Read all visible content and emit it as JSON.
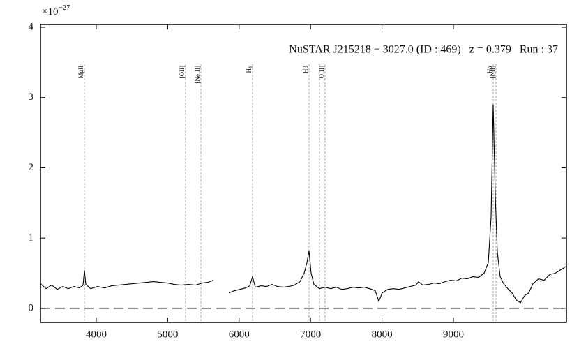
{
  "chart_data": {
    "type": "line",
    "annotation": "NuSTAR J215218 − 3027.0 (ID : 469)   z = 0.379   Run : 37",
    "y_multiplier": {
      "base": "×10",
      "exponent": "−27"
    },
    "xlim": [
      3219,
      10582
    ],
    "xticks": [
      4000,
      5000,
      6000,
      7000,
      8000,
      9000
    ],
    "ylim": [
      -0.2,
      4.04
    ],
    "yticks": [
      0,
      1,
      2,
      3,
      4
    ],
    "zero_line": {
      "value": 0,
      "color": "#808080"
    },
    "emission_lines": {
      "color": "#aaaaaa",
      "labels": [
        "MgII",
        "[OII]",
        "[NeIII]",
        "Hγ",
        "Hβ",
        null,
        "[OIII]",
        "Hα",
        "[NII]"
      ],
      "x": [
        3834,
        5250,
        5465,
        6188,
        6979,
        7125,
        7203,
        9557,
        9596
      ]
    },
    "series": [
      {
        "color": "#000000",
        "x": [
          3219,
          3297,
          3375,
          3453,
          3531,
          3609,
          3688,
          3766,
          3815,
          3834,
          3854,
          3922,
          4020,
          4117,
          4215,
          4313,
          4410,
          4508,
          4605,
          4703,
          4801,
          4898,
          4996,
          5094,
          5191,
          5289,
          5387,
          5484,
          5563,
          5641,
          null,
          5856,
          5934,
          6012,
          6090,
          6149,
          6188,
          6227,
          6305,
          6383,
          6461,
          6539,
          6617,
          6695,
          6774,
          6852,
          6910,
          6949,
          6979,
          7008,
          7047,
          7125,
          7203,
          7281,
          7360,
          7438,
          7516,
          7594,
          7672,
          7750,
          7828,
          7906,
          7955,
          8004,
          8082,
          8160,
          8238,
          8317,
          8395,
          8473,
          8512,
          8570,
          8648,
          8727,
          8805,
          8883,
          8961,
          9039,
          9117,
          9195,
          9273,
          9352,
          9430,
          9488,
          9527,
          9557,
          9586,
          9615,
          9654,
          9703,
          9762,
          9820,
          9879,
          9938,
          9996,
          10055,
          10113,
          10191,
          10270,
          10348,
          10426,
          10504,
          10582
        ],
        "values": [
          0.35,
          0.28,
          0.33,
          0.27,
          0.31,
          0.28,
          0.31,
          0.29,
          0.33,
          0.54,
          0.34,
          0.28,
          0.31,
          0.29,
          0.32,
          0.33,
          0.34,
          0.35,
          0.36,
          0.37,
          0.38,
          0.37,
          0.36,
          0.34,
          0.33,
          0.34,
          0.33,
          0.36,
          0.37,
          0.4,
          null,
          0.22,
          0.25,
          0.27,
          0.29,
          0.32,
          0.45,
          0.3,
          0.32,
          0.31,
          0.34,
          0.31,
          0.3,
          0.31,
          0.33,
          0.38,
          0.5,
          0.65,
          0.82,
          0.5,
          0.34,
          0.28,
          0.3,
          0.28,
          0.3,
          0.27,
          0.28,
          0.3,
          0.29,
          0.3,
          0.28,
          0.25,
          0.1,
          0.22,
          0.27,
          0.28,
          0.27,
          0.29,
          0.31,
          0.33,
          0.38,
          0.33,
          0.34,
          0.36,
          0.35,
          0.38,
          0.4,
          0.39,
          0.43,
          0.42,
          0.45,
          0.44,
          0.5,
          0.65,
          1.3,
          2.9,
          1.6,
          0.8,
          0.45,
          0.35,
          0.28,
          0.22,
          0.12,
          0.08,
          0.18,
          0.22,
          0.35,
          0.42,
          0.4,
          0.48,
          0.5,
          0.55,
          0.6
        ]
      }
    ]
  }
}
